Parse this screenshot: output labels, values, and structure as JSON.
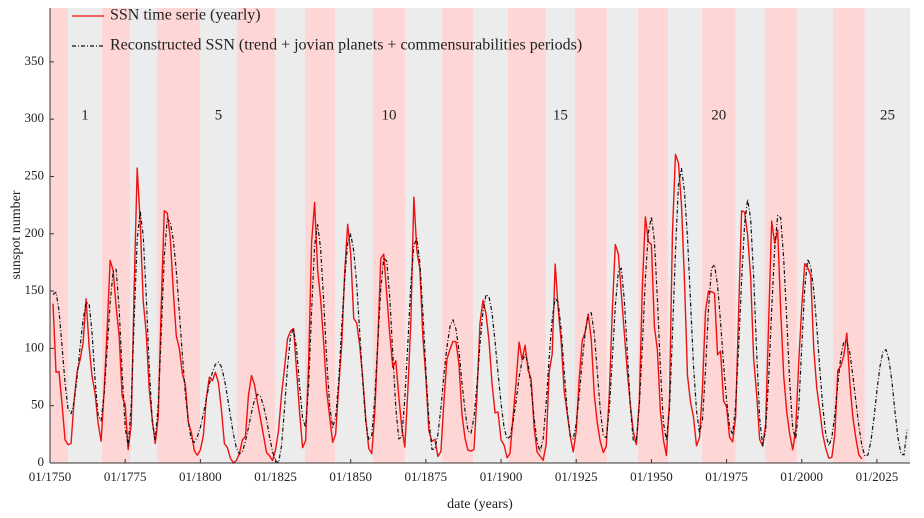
{
  "chart_data": {
    "type": "line",
    "x_label": "date (years)",
    "y_label": "sunspot number",
    "xlim": [
      1750,
      2036
    ],
    "ylim": [
      0,
      397
    ],
    "xticks": [
      {
        "value": 1750,
        "label": "01/1750"
      },
      {
        "value": 1775,
        "label": "01/1775"
      },
      {
        "value": 1800,
        "label": "01/1800"
      },
      {
        "value": 1825,
        "label": "01/1825"
      },
      {
        "value": 1850,
        "label": "01/1850"
      },
      {
        "value": 1875,
        "label": "01/1875"
      },
      {
        "value": 1900,
        "label": "01/1900"
      },
      {
        "value": 1925,
        "label": "01/1925"
      },
      {
        "value": 1950,
        "label": "01/1950"
      },
      {
        "value": 1975,
        "label": "01/1975"
      },
      {
        "value": 2000,
        "label": "01/2000"
      },
      {
        "value": 2025,
        "label": "01/2025"
      }
    ],
    "yticks": [
      0,
      50,
      100,
      150,
      200,
      250,
      300,
      350
    ],
    "legend": "top-left",
    "band_edges": [
      1750,
      1756.0,
      1767.3,
      1776.6,
      1785.6,
      1799.9,
      1812.2,
      1824.8,
      1834.8,
      1844.8,
      1857.4,
      1868.1,
      1880.4,
      1890.7,
      1902.3,
      1914.9,
      1924.6,
      1935.2,
      1945.5,
      1955.5,
      1966.8,
      1978.0,
      1987.8,
      1998.4,
      2010.4,
      2021.0,
      2036
    ],
    "band_colors": [
      "#ffd6d6",
      "#ececec"
    ],
    "band_labels": [
      1,
      5,
      10,
      15,
      20,
      25
    ],
    "x": [
      1751,
      1752,
      1753,
      1754,
      1755,
      1756,
      1757,
      1758,
      1759,
      1760,
      1761,
      1762,
      1763,
      1764,
      1765,
      1766,
      1767,
      1768,
      1769,
      1770,
      1771,
      1772,
      1773,
      1774,
      1775,
      1776,
      1777,
      1778,
      1779,
      1780,
      1781,
      1782,
      1783,
      1784,
      1785,
      1786,
      1787,
      1788,
      1789,
      1790,
      1791,
      1792,
      1793,
      1794,
      1795,
      1796,
      1797,
      1798,
      1799,
      1800,
      1801,
      1802,
      1803,
      1804,
      1805,
      1806,
      1807,
      1808,
      1809,
      1810,
      1811,
      1812,
      1813,
      1814,
      1815,
      1816,
      1817,
      1818,
      1819,
      1820,
      1821,
      1822,
      1823,
      1824,
      1825,
      1826,
      1827,
      1828,
      1829,
      1830,
      1831,
      1832,
      1833,
      1834,
      1835,
      1836,
      1837,
      1838,
      1839,
      1840,
      1841,
      1842,
      1843,
      1844,
      1845,
      1846,
      1847,
      1848,
      1849,
      1850,
      1851,
      1852,
      1853,
      1854,
      1855,
      1856,
      1857,
      1858,
      1859,
      1860,
      1861,
      1862,
      1863,
      1864,
      1865,
      1866,
      1867,
      1868,
      1869,
      1870,
      1871,
      1872,
      1873,
      1874,
      1875,
      1876,
      1877,
      1878,
      1879,
      1880,
      1881,
      1882,
      1883,
      1884,
      1885,
      1886,
      1887,
      1888,
      1889,
      1890,
      1891,
      1892,
      1893,
      1894,
      1895,
      1896,
      1897,
      1898,
      1899,
      1900,
      1901,
      1902,
      1903,
      1904,
      1905,
      1906,
      1907,
      1908,
      1909,
      1910,
      1911,
      1912,
      1913,
      1914,
      1915,
      1916,
      1917,
      1918,
      1919,
      1920,
      1921,
      1922,
      1923,
      1924,
      1925,
      1926,
      1927,
      1928,
      1929,
      1930,
      1931,
      1932,
      1933,
      1934,
      1935,
      1936,
      1937,
      1938,
      1939,
      1940,
      1941,
      1942,
      1943,
      1944,
      1945,
      1946,
      1947,
      1948,
      1949,
      1950,
      1951,
      1952,
      1953,
      1954,
      1955,
      1956,
      1957,
      1958,
      1959,
      1960,
      1961,
      1962,
      1963,
      1964,
      1965,
      1966,
      1967,
      1968,
      1969,
      1970,
      1971,
      1972,
      1973,
      1974,
      1975,
      1976,
      1977,
      1978,
      1979,
      1980,
      1981,
      1982,
      1983,
      1984,
      1985,
      1986,
      1987,
      1988,
      1989,
      1990,
      1991,
      1992,
      1993,
      1994,
      1995,
      1996,
      1997,
      1998,
      1999,
      2000,
      2001,
      2002,
      2003,
      2004,
      2005,
      2006,
      2007,
      2008,
      2009,
      2010,
      2011,
      2012,
      2013,
      2014,
      2015,
      2016,
      2017,
      2018,
      2019,
      2020,
      2021,
      2022,
      2023,
      2024,
      2025,
      2026,
      2027,
      2028,
      2029,
      2030,
      2031,
      2032,
      2033,
      2034,
      2035
    ],
    "series": [
      {
        "name": "SSN time serie (yearly)",
        "color": "#ee1111",
        "dash": "solid",
        "values": [
          139.0,
          79.2,
          79.7,
          51.2,
          20.3,
          16.0,
          17.0,
          54.0,
          79.3,
          90.0,
          104.8,
          143.2,
          102.0,
          75.2,
          60.7,
          34.8,
          19.0,
          63.0,
          116.3,
          176.8,
          168.0,
          136.0,
          110.8,
          58.0,
          51.0,
          11.7,
          33.0,
          154.2,
          257.3,
          209.8,
          141.3,
          113.5,
          64.2,
          38.0,
          17.0,
          40.2,
          138.2,
          220.0,
          218.2,
          196.8,
          149.8,
          111.0,
          100.0,
          78.2,
          68.3,
          35.5,
          26.7,
          10.7,
          6.8,
          11.3,
          24.2,
          56.7,
          75.0,
          71.8,
          79.2,
          70.3,
          46.8,
          16.8,
          13.5,
          4.2,
          0.0,
          2.3,
          8.3,
          20.3,
          23.2,
          59.0,
          76.3,
          68.3,
          52.9,
          38.5,
          24.2,
          9.2,
          6.3,
          2.2,
          11.4,
          28.2,
          59.9,
          83.0,
          108.5,
          115.2,
          117.4,
          80.8,
          44.3,
          13.4,
          19.5,
          85.8,
          192.7,
          227.3,
          168.7,
          143.0,
          105.5,
          63.3,
          40.3,
          18.1,
          25.1,
          65.8,
          102.7,
          166.3,
          208.3,
          182.5,
          126.3,
          122.0,
          102.7,
          74.1,
          39.0,
          12.7,
          8.2,
          43.4,
          104.4,
          178.3,
          182.2,
          146.6,
          112.1,
          83.5,
          89.2,
          57.8,
          30.7,
          13.9,
          62.8,
          123.6,
          232.0,
          185.3,
          169.2,
          110.1,
          74.5,
          28.3,
          18.9,
          20.7,
          5.7,
          10.0,
          53.7,
          90.5,
          99.0,
          106.1,
          105.8,
          86.3,
          42.4,
          21.8,
          11.2,
          10.4,
          11.8,
          59.5,
          121.7,
          142.0,
          130.0,
          106.6,
          69.4,
          43.8,
          44.4,
          20.2,
          15.7,
          4.6,
          8.5,
          40.8,
          70.1,
          105.5,
          90.1,
          102.8,
          80.9,
          73.2,
          30.9,
          9.5,
          6.0,
          2.4,
          16.1,
          79.0,
          95.0,
          173.6,
          134.6,
          105.7,
          62.7,
          43.5,
          23.7,
          9.7,
          27.9,
          74.0,
          106.5,
          114.7,
          129.7,
          108.2,
          59.4,
          35.1,
          18.6,
          9.2,
          14.6,
          60.2,
          132.8,
          190.6,
          182.6,
          148.0,
          113.0,
          79.2,
          50.8,
          27.1,
          16.1,
          55.3,
          154.3,
          214.7,
          193.0,
          190.7,
          118.9,
          98.3,
          45.0,
          20.1,
          6.6,
          54.2,
          200.7,
          269.3,
          261.7,
          225.1,
          159.0,
          76.4,
          53.4,
          39.9,
          15.0,
          22.0,
          66.8,
          132.9,
          150.0,
          149.4,
          148.0,
          94.4,
          97.6,
          54.1,
          49.2,
          22.5,
          18.4,
          39.3,
          131.0,
          220.1,
          218.9,
          198.9,
          162.4,
          91.0,
          60.5,
          20.6,
          14.8,
          33.9,
          123.0,
          211.1,
          191.8,
          203.3,
          133.0,
          76.1,
          44.9,
          25.1,
          11.6,
          28.9,
          88.3,
          136.3,
          173.9,
          170.4,
          163.6,
          99.3,
          65.3,
          45.8,
          24.7,
          12.6,
          4.2,
          4.8,
          24.9,
          80.8,
          84.5,
          94.0,
          113.3,
          69.8,
          39.8,
          21.7,
          7.0,
          3.6,
          null,
          null,
          null,
          null,
          null,
          null,
          null,
          null,
          null,
          null,
          null,
          null,
          null,
          null,
          null
        ]
      },
      {
        "name": "Reconstructed SSN (trend + jovian planets + commensurabilities periods)",
        "color": "#111111",
        "dash": "dashdot",
        "values": [
          147,
          149,
          133,
          102,
          70,
          47,
          43,
          53,
          75,
          101,
          125,
          140,
          139,
          113,
          72,
          41,
          37,
          60,
          99,
          140,
          167,
          169,
          134,
          79,
          31,
          15,
          50,
          126,
          195,
          220,
          198,
          146,
          84,
          36,
          20,
          51,
          114,
          180,
          213,
          210,
          195,
          168,
          132,
          95,
          61,
          36,
          20,
          18,
          23,
          31,
          43,
          56,
          69,
          79,
          86,
          88,
          84,
          73,
          58,
          41,
          25,
          13,
          8,
          10,
          19,
          31,
          44,
          55,
          60,
          58,
          50,
          38,
          23,
          10,
          2,
          0,
          15,
          48,
          84,
          111,
          117,
          100,
          67,
          39,
          31,
          67,
          133,
          190,
          208,
          187,
          142,
          91,
          50,
          31,
          40,
          71,
          118,
          161,
          192,
          200,
          185,
          156,
          114,
          71,
          36,
          20,
          24,
          56,
          105,
          152,
          179,
          176,
          144,
          95,
          48,
          21,
          23,
          56,
          104,
          156,
          190,
          196,
          175,
          132,
          81,
          38,
          12,
          12,
          25,
          48,
          77,
          101,
          119,
          125,
          117,
          98,
          70,
          46,
          28,
          26,
          40,
          69,
          104,
          132,
          147,
          145,
          131,
          106,
          78,
          52,
          31,
          21,
          23,
          36,
          54,
          75,
          89,
          95,
          87,
          66,
          39,
          18,
          10,
          21,
          52,
          92,
          125,
          144,
          140,
          116,
          80,
          46,
          24,
          21,
          34,
          59,
          89,
          114,
          130,
          131,
          113,
          80,
          46,
          24,
          22,
          47,
          91,
          137,
          167,
          170,
          142,
          97,
          49,
          19,
          19,
          51,
          103,
          161,
          201,
          215,
          194,
          143,
          82,
          35,
          20,
          46,
          112,
          184,
          243,
          257,
          237,
          197,
          141,
          85,
          46,
          26,
          38,
          81,
          135,
          170,
          173,
          155,
          123,
          86,
          55,
          31,
          25,
          50,
          101,
          159,
          209,
          230,
          213,
          163,
          97,
          39,
          15,
          29,
          74,
          134,
          187,
          216,
          214,
          178,
          126,
          70,
          30,
          21,
          48,
          102,
          153,
          178,
          171,
          150,
          119,
          82,
          49,
          25,
          15,
          22,
          42,
          69,
          93,
          106,
          106,
          96,
          76,
          54,
          32,
          15,
          6,
          7,
          19,
          39,
          63,
          84,
          97,
          99,
          90,
          71,
          45,
          22,
          8,
          7,
          29
        ]
      }
    ]
  }
}
